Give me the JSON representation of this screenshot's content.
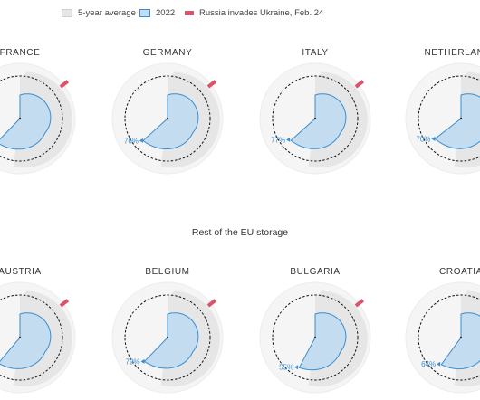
{
  "legend": {
    "avg": "5-year average",
    "y2022": "2022",
    "war": "Russia invades Ukraine, Feb. 24"
  },
  "section_title": "Rest of the EU storage",
  "colors": {
    "avg_fill": "#e6e6e6",
    "fill_2022": "#c3dcf0",
    "line_2022": "#3a8ed1",
    "war_marker": "#d9546a",
    "capacity_ring": "#111111",
    "background_disc": "#f5f5f5"
  },
  "chart_data": [
    {
      "type": "radial-area",
      "country": "FRANCE",
      "current_pct": null
    },
    {
      "type": "radial-area",
      "country": "GERMANY",
      "current_pct": "76%"
    },
    {
      "type": "radial-area",
      "country": "ITALY",
      "current_pct": "77%"
    },
    {
      "type": "radial-area",
      "country": "NETHERLANDS",
      "current_pct": "70%"
    },
    {
      "type": "radial-area",
      "country": "AUSTRIA",
      "current_pct": null
    },
    {
      "type": "radial-area",
      "country": "BELGIUM",
      "current_pct": "79%"
    },
    {
      "type": "radial-area",
      "country": "BULGARIA",
      "current_pct": "55%"
    },
    {
      "type": "radial-area",
      "country": "CROATIA",
      "current_pct": "64%"
    }
  ]
}
